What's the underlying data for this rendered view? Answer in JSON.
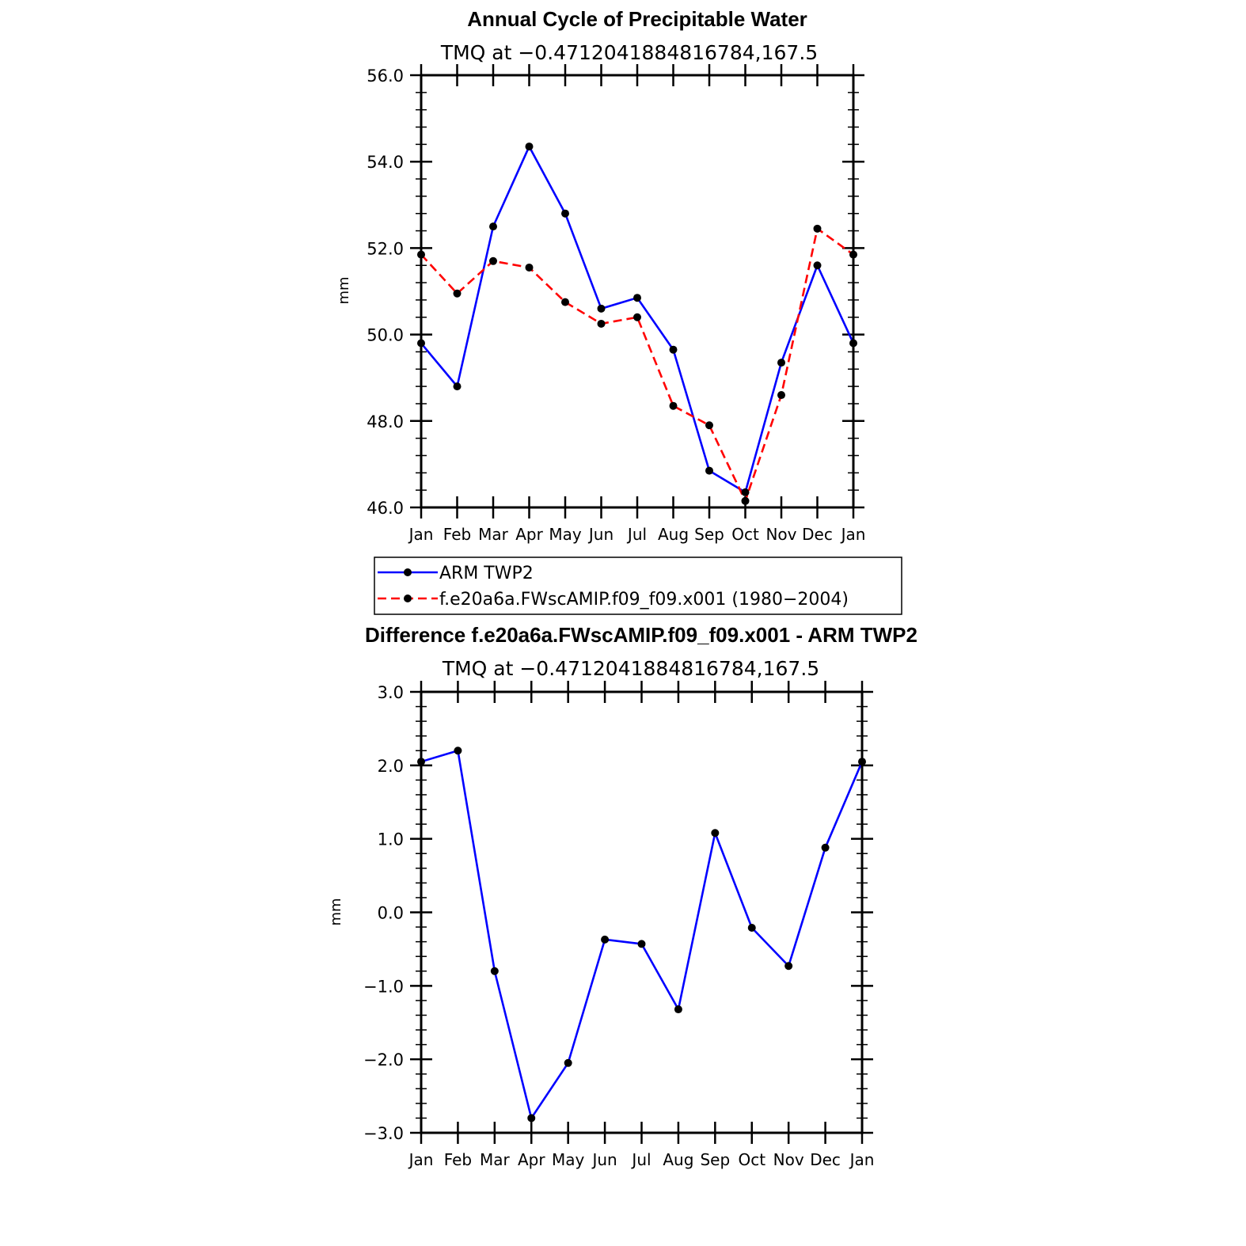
{
  "chart_data": [
    {
      "type": "line",
      "title": "Annual Cycle of Precipitable Water",
      "subtitle": "TMQ at −0.4712041884816784,167.5",
      "ylabel": "mm",
      "xlabel": "",
      "ylim": [
        46.0,
        56.0
      ],
      "yticks": [
        "56.0",
        "54.0",
        "52.0",
        "50.0",
        "48.0",
        "46.0"
      ],
      "yticks_values": [
        56,
        54,
        52,
        50,
        48,
        46
      ],
      "categories": [
        "Jan",
        "Feb",
        "Mar",
        "Apr",
        "May",
        "Jun",
        "Jul",
        "Aug",
        "Sep",
        "Oct",
        "Nov",
        "Dec",
        "Jan"
      ],
      "series": [
        {
          "name": "ARM TWP2",
          "color": "#0000ff",
          "dash": "solid",
          "values": [
            49.8,
            48.8,
            52.5,
            54.35,
            52.8,
            50.6,
            50.85,
            49.65,
            46.85,
            46.35,
            49.35,
            51.6,
            49.8
          ]
        },
        {
          "name": "f.e20a6a.FWscAMIP.f09_f09.x001 (1980−2004)",
          "color": "#ff0000",
          "dash": "dashed",
          "values": [
            51.85,
            50.95,
            51.7,
            51.55,
            50.75,
            50.25,
            50.4,
            48.35,
            47.9,
            46.15,
            48.6,
            52.45,
            51.85
          ]
        }
      ],
      "legend": [
        "ARM TWP2",
        "f.e20a6a.FWscAMIP.f09_f09.x001 (1980−2004)"
      ]
    },
    {
      "type": "line",
      "title": "Difference f.e20a6a.FWscAMIP.f09_f09.x001 - ARM TWP2",
      "subtitle": "TMQ at −0.4712041884816784,167.5",
      "ylabel": "mm",
      "xlabel": "",
      "ylim": [
        -3.0,
        3.0
      ],
      "yticks": [
        "3.0",
        "2.0",
        "1.0",
        "0.0",
        "−1.0",
        "−2.0",
        "−3.0"
      ],
      "yticks_values": [
        3,
        2,
        1,
        0,
        -1,
        -2,
        -3
      ],
      "categories": [
        "Jan",
        "Feb",
        "Mar",
        "Apr",
        "May",
        "Jun",
        "Jul",
        "Aug",
        "Sep",
        "Oct",
        "Nov",
        "Dec",
        "Jan"
      ],
      "series": [
        {
          "name": "Difference",
          "color": "#0000ff",
          "dash": "solid",
          "values": [
            2.05,
            2.2,
            -0.8,
            -2.8,
            -2.05,
            -0.37,
            -0.43,
            -1.32,
            1.08,
            -0.21,
            -0.73,
            0.88,
            2.05
          ]
        }
      ]
    }
  ]
}
